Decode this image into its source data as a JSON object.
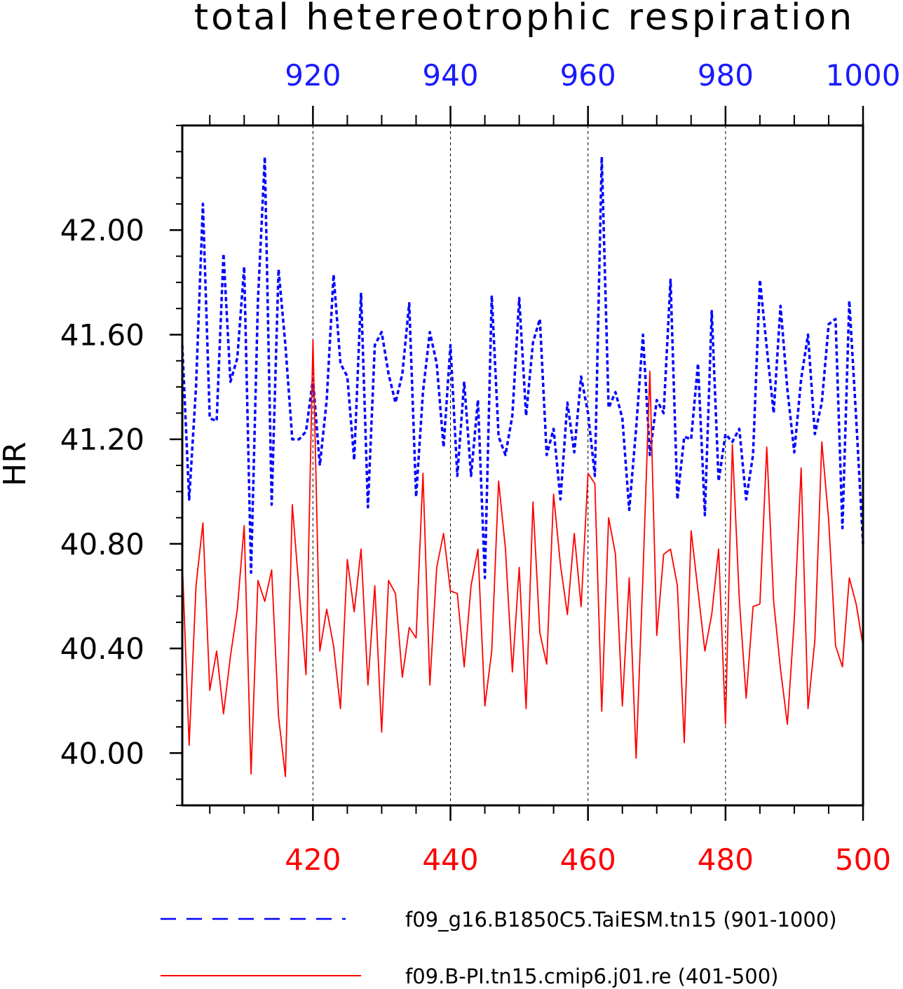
{
  "colors": {
    "top_axis": "#1a1aff",
    "bottom_axis": "#ff0000",
    "blue_series": "#0000ff",
    "red_series": "#ff0000",
    "frame": "#000000",
    "grid": "#000000"
  },
  "chart_data": {
    "type": "line",
    "title": "total hetereotrophic respiration",
    "ylabel": "HR",
    "ylim": [
      39.8,
      42.4
    ],
    "yticks": [
      40.0,
      40.4,
      40.8,
      41.2,
      41.6,
      42.0
    ],
    "ytick_labels": [
      "40.00",
      "40.40",
      "40.80",
      "41.20",
      "41.60",
      "42.00"
    ],
    "top_axis": {
      "range": [
        901,
        1000
      ],
      "ticks": [
        920,
        940,
        960,
        980,
        1000
      ],
      "tick_labels": [
        "920",
        "940",
        "960",
        "980",
        "1000"
      ]
    },
    "bottom_axis": {
      "range": [
        401,
        500
      ],
      "ticks": [
        420,
        440,
        460,
        480,
        500
      ],
      "tick_labels": [
        "420",
        "440",
        "460",
        "480",
        "500"
      ]
    },
    "grid": "vertical dashed lines at major ticks",
    "legend": "bottom",
    "series": [
      {
        "name": "f09_g16.B1850C5.TaiESM.tn15 (901-1000)",
        "style": "dashed",
        "axis": "top",
        "x_start": 901,
        "values": [
          41.56,
          40.97,
          41.4,
          42.1,
          41.28,
          41.27,
          41.91,
          41.42,
          41.51,
          41.86,
          40.69,
          41.73,
          42.28,
          40.95,
          41.85,
          41.56,
          41.2,
          41.2,
          41.23,
          41.43,
          41.1,
          41.35,
          41.83,
          41.49,
          41.44,
          41.12,
          41.76,
          40.94,
          41.56,
          41.61,
          41.45,
          41.34,
          41.45,
          41.72,
          40.98,
          41.38,
          41.61,
          41.49,
          41.17,
          41.56,
          41.06,
          41.42,
          41.06,
          41.35,
          40.67,
          41.75,
          41.21,
          41.14,
          41.29,
          41.74,
          41.29,
          41.57,
          41.66,
          41.14,
          41.24,
          40.97,
          41.34,
          41.15,
          41.44,
          41.3,
          41.06,
          42.28,
          41.32,
          41.38,
          41.28,
          40.93,
          41.24,
          41.6,
          41.14,
          41.35,
          41.3,
          41.81,
          40.97,
          41.21,
          41.2,
          41.49,
          40.91,
          41.69,
          41.04,
          41.22,
          41.19,
          41.24,
          40.97,
          41.14,
          41.81,
          41.55,
          41.3,
          41.71,
          41.39,
          41.15,
          41.43,
          41.6,
          41.22,
          41.34,
          41.64,
          41.66,
          40.86,
          41.73,
          41.28,
          40.8
        ]
      },
      {
        "name": "f09.B-PI.tn15.cmip6.j01.re (401-500)",
        "style": "solid",
        "axis": "bottom",
        "x_start": 401,
        "values": [
          40.73,
          40.03,
          40.64,
          40.88,
          40.24,
          40.39,
          40.15,
          40.37,
          40.55,
          40.87,
          39.92,
          40.66,
          40.58,
          40.7,
          40.14,
          39.91,
          40.95,
          40.62,
          40.3,
          41.58,
          40.39,
          40.55,
          40.41,
          40.17,
          40.74,
          40.54,
          40.78,
          40.26,
          40.64,
          40.08,
          40.66,
          40.61,
          40.29,
          40.48,
          40.44,
          41.07,
          40.26,
          40.71,
          40.84,
          40.62,
          40.61,
          40.33,
          40.64,
          40.78,
          40.18,
          40.39,
          41.04,
          40.78,
          40.31,
          40.71,
          40.17,
          40.96,
          40.46,
          40.34,
          40.99,
          40.72,
          40.53,
          40.84,
          40.56,
          41.07,
          41.03,
          40.16,
          40.9,
          40.76,
          40.18,
          40.67,
          39.98,
          40.68,
          41.46,
          40.45,
          40.76,
          40.78,
          40.64,
          40.04,
          40.85,
          40.62,
          40.39,
          40.53,
          40.78,
          40.11,
          41.18,
          40.59,
          40.21,
          40.56,
          40.57,
          41.17,
          40.58,
          40.32,
          40.11,
          40.51,
          41.09,
          40.17,
          40.43,
          41.19,
          40.89,
          40.41,
          40.33,
          40.67,
          40.57,
          40.41
        ]
      }
    ]
  }
}
